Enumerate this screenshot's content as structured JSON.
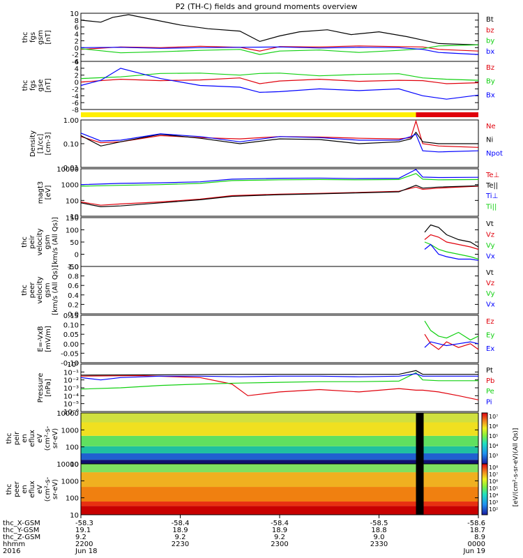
{
  "title": "P2 (TH-C) fields and ground moments overview",
  "colors": {
    "black": "#000000",
    "red": "#e0000b",
    "green": "#10d010",
    "blue": "#0000ff",
    "yellow": "#ffef00",
    "bar_red": "#e0000b"
  },
  "chart_data": [
    {
      "type": "line",
      "panel": "fgs",
      "ylabel": [
        "thc",
        "fgs",
        "gsm",
        "[nT]"
      ],
      "ylim": [
        -4,
        10
      ],
      "yticks": [
        "10",
        "8",
        "6",
        "4",
        "2",
        "0",
        "-2",
        "-4"
      ],
      "series": [
        {
          "name": "Bt",
          "color": "black",
          "x": [
            0,
            0.05,
            0.08,
            0.12,
            0.18,
            0.25,
            0.32,
            0.4,
            0.45,
            0.5,
            0.55,
            0.62,
            0.68,
            0.75,
            0.82,
            0.86,
            0.9,
            1.0
          ],
          "y": [
            8,
            7.4,
            8.8,
            9.6,
            8.2,
            6.6,
            5.5,
            4.8,
            1.8,
            3.4,
            4.6,
            5.2,
            3.8,
            4.6,
            3.2,
            2.2,
            1.2,
            0.8
          ]
        },
        {
          "name": "bz",
          "color": "red",
          "x": [
            0,
            0.1,
            0.2,
            0.3,
            0.4,
            0.45,
            0.5,
            0.6,
            0.7,
            0.8,
            0.86,
            0.9,
            1.0
          ],
          "y": [
            -0.5,
            0.2,
            0,
            0.4,
            0.1,
            -1.0,
            0.3,
            0.2,
            0.5,
            0.3,
            0.2,
            -0.5,
            -1.0
          ]
        },
        {
          "name": "by",
          "color": "green",
          "x": [
            0,
            0.1,
            0.2,
            0.3,
            0.4,
            0.45,
            0.5,
            0.6,
            0.7,
            0.8,
            0.86,
            0.9,
            1.0
          ],
          "y": [
            -0.3,
            -1.5,
            -1.2,
            -0.8,
            -0.5,
            -2.0,
            -1.0,
            -0.7,
            -1.4,
            -0.8,
            -0.3,
            0.5,
            0.8
          ]
        },
        {
          "name": "bx",
          "color": "blue",
          "x": [
            0,
            0.1,
            0.2,
            0.3,
            0.4,
            0.5,
            0.6,
            0.7,
            0.8,
            0.86,
            0.9,
            1.0
          ],
          "y": [
            0,
            0.1,
            -0.2,
            0,
            0.1,
            0.2,
            -0.1,
            0.1,
            0,
            -0.5,
            -1.4,
            -2.0
          ]
        }
      ]
    },
    {
      "type": "line",
      "panel": "fgs_gse",
      "ylabel": [
        "thc",
        "fgs",
        "gse",
        "[nT]"
      ],
      "ylim": [
        -8,
        6
      ],
      "yticks": [
        "6",
        "4",
        "2",
        "0",
        "-2",
        "-4",
        "-6",
        "-8"
      ],
      "series": [
        {
          "name": "Bz",
          "color": "red",
          "x": [
            0,
            0.1,
            0.2,
            0.3,
            0.4,
            0.45,
            0.5,
            0.6,
            0.7,
            0.8,
            0.86,
            0.92,
            1.0
          ],
          "y": [
            0,
            0.8,
            0.4,
            0.6,
            1.2,
            -0.5,
            0.3,
            0.8,
            0.2,
            0.5,
            0.4,
            -0.5,
            -0.2
          ]
        },
        {
          "name": "By",
          "color": "green",
          "x": [
            0,
            0.1,
            0.2,
            0.3,
            0.4,
            0.45,
            0.5,
            0.6,
            0.7,
            0.8,
            0.86,
            0.92,
            1.0
          ],
          "y": [
            1.0,
            1.5,
            2.5,
            2.6,
            2.0,
            2.5,
            2.6,
            1.8,
            2.2,
            2.4,
            1.2,
            0.8,
            0.5
          ]
        },
        {
          "name": "Bx",
          "color": "blue",
          "x": [
            0,
            0.05,
            0.1,
            0.15,
            0.2,
            0.3,
            0.4,
            0.45,
            0.5,
            0.6,
            0.7,
            0.8,
            0.86,
            0.92,
            1.0
          ],
          "y": [
            -1,
            0.5,
            4.0,
            2.5,
            1.0,
            -1.0,
            -1.5,
            -3.0,
            -2.8,
            -2.0,
            -2.5,
            -2.0,
            -4.0,
            -5.0,
            -3.8
          ]
        }
      ]
    },
    {
      "type": "bar_status",
      "panel": "mode_bar",
      "segments": [
        {
          "from": 0,
          "to": 0.843,
          "color": "yellow"
        },
        {
          "from": 0.843,
          "to": 1.0,
          "color": "bar_red"
        }
      ]
    },
    {
      "type": "line",
      "panel": "density",
      "ylabel": [
        "Density",
        "[1/cc]",
        "[cm-3]"
      ],
      "ylim": [
        0.01,
        1.0
      ],
      "scale": "log",
      "yticks": [
        "1.00",
        "0.10",
        "0.01"
      ],
      "series": [
        {
          "name": "Ne",
          "color": "red",
          "x": [
            0,
            0.05,
            0.1,
            0.2,
            0.3,
            0.4,
            0.5,
            0.6,
            0.7,
            0.8,
            0.83,
            0.843,
            0.86,
            0.9,
            1.0
          ],
          "y": [
            0.2,
            0.11,
            0.12,
            0.22,
            0.18,
            0.16,
            0.2,
            0.19,
            0.17,
            0.16,
            0.18,
            0.9,
            0.1,
            0.08,
            0.07
          ]
        },
        {
          "name": "Ni",
          "color": "black",
          "x": [
            0,
            0.05,
            0.1,
            0.2,
            0.3,
            0.4,
            0.5,
            0.6,
            0.7,
            0.8,
            0.83,
            0.843,
            0.86,
            0.9,
            1.0
          ],
          "y": [
            0.22,
            0.08,
            0.12,
            0.25,
            0.17,
            0.1,
            0.16,
            0.15,
            0.1,
            0.12,
            0.16,
            0.3,
            0.12,
            0.1,
            0.1
          ]
        },
        {
          "name": "Npot",
          "color": "blue",
          "x": [
            0,
            0.05,
            0.1,
            0.2,
            0.3,
            0.4,
            0.5,
            0.6,
            0.7,
            0.8,
            0.83,
            0.843,
            0.86,
            0.9,
            1.0
          ],
          "y": [
            0.28,
            0.13,
            0.14,
            0.26,
            0.2,
            0.12,
            0.2,
            0.18,
            0.14,
            0.14,
            0.2,
            0.25,
            0.05,
            0.045,
            0.05
          ]
        }
      ]
    },
    {
      "type": "line",
      "panel": "temperature",
      "ylabel": [
        "magt3",
        "[eV]"
      ],
      "ylim": [
        10,
        10000
      ],
      "scale": "log",
      "yticks": [
        "10000",
        "1000",
        "100",
        "10"
      ],
      "series": [
        {
          "name": "Te⊥",
          "color": "red",
          "x": [
            0,
            0.05,
            0.1,
            0.2,
            0.3,
            0.38,
            0.5,
            0.6,
            0.7,
            0.8,
            0.843,
            0.86,
            0.9,
            1.0
          ],
          "y": [
            80,
            50,
            60,
            80,
            120,
            200,
            250,
            280,
            320,
            380,
            700,
            500,
            600,
            800
          ]
        },
        {
          "name": "Te||",
          "color": "black",
          "x": [
            0,
            0.05,
            0.1,
            0.2,
            0.3,
            0.38,
            0.5,
            0.6,
            0.7,
            0.8,
            0.843,
            0.86,
            0.9,
            1.0
          ],
          "y": [
            70,
            40,
            45,
            70,
            110,
            180,
            230,
            260,
            300,
            350,
            900,
            600,
            700,
            850
          ]
        },
        {
          "name": "Ti⊥",
          "color": "blue",
          "x": [
            0,
            0.1,
            0.2,
            0.3,
            0.38,
            0.5,
            0.6,
            0.7,
            0.8,
            0.843,
            0.86,
            0.9,
            1.0
          ],
          "y": [
            1000,
            1200,
            1300,
            1500,
            2200,
            2500,
            2600,
            2400,
            2500,
            9000,
            3000,
            2800,
            2900
          ]
        },
        {
          "name": "Ti||",
          "color": "green",
          "x": [
            0,
            0.1,
            0.2,
            0.3,
            0.38,
            0.5,
            0.6,
            0.7,
            0.8,
            0.843,
            0.86,
            0.9,
            1.0
          ],
          "y": [
            800,
            900,
            1000,
            1200,
            1800,
            2000,
            2100,
            2000,
            2100,
            5000,
            2200,
            2000,
            2100
          ]
        }
      ]
    },
    {
      "type": "line",
      "panel": "peir_velocity",
      "ylabel": [
        "thc",
        "peir",
        "velocity",
        "gsm",
        "[km/s (All Qs)]"
      ],
      "ylim": [
        -50,
        150
      ],
      "yticks": [
        "150",
        "100",
        "50",
        "0",
        "-50"
      ],
      "series": [
        {
          "name": "Vt",
          "color": "black",
          "x": [
            0.865,
            0.88,
            0.9,
            0.92,
            0.95,
            0.98,
            1.0
          ],
          "y": [
            90,
            120,
            110,
            80,
            60,
            50,
            30
          ]
        },
        {
          "name": "Vz",
          "color": "red",
          "x": [
            0.865,
            0.88,
            0.9,
            0.92,
            0.95,
            0.98,
            1.0
          ],
          "y": [
            60,
            80,
            70,
            50,
            40,
            30,
            20
          ]
        },
        {
          "name": "Vy",
          "color": "green",
          "x": [
            0.865,
            0.88,
            0.9,
            0.92,
            0.95,
            0.98,
            1.0
          ],
          "y": [
            50,
            40,
            20,
            10,
            0,
            -10,
            -20
          ]
        },
        {
          "name": "Vx",
          "color": "blue",
          "x": [
            0.865,
            0.88,
            0.9,
            0.92,
            0.95,
            0.98,
            1.0
          ],
          "y": [
            20,
            40,
            0,
            -10,
            -20,
            -20,
            -25
          ]
        }
      ]
    },
    {
      "type": "line",
      "panel": "peer_velocity",
      "ylabel": [
        "thc",
        "peer",
        "velocity",
        "gsm",
        "[km/s (All Qs)]"
      ],
      "ylim": [
        0,
        1.0
      ],
      "yticks": [
        "1.0",
        "0.8",
        "0.6",
        "0.4",
        "0.2",
        "0.0"
      ],
      "series": [
        {
          "name": "Vt",
          "color": "black",
          "x": [],
          "y": []
        },
        {
          "name": "Vz",
          "color": "red",
          "x": [],
          "y": []
        },
        {
          "name": "Vy",
          "color": "green",
          "x": [],
          "y": []
        },
        {
          "name": "Vx",
          "color": "blue",
          "x": [],
          "y": []
        }
      ]
    },
    {
      "type": "line",
      "panel": "efield",
      "ylabel": [
        "E=-VxB",
        "[mV/m]"
      ],
      "ylim": [
        -0.1,
        0.15
      ],
      "yticks": [
        "0.15",
        "0.10",
        "0.05",
        "0.00",
        "-0.05",
        "-0.10"
      ],
      "series": [
        {
          "name": "Ez",
          "color": "red",
          "x": [
            0.865,
            0.88,
            0.9,
            0.92,
            0.95,
            0.98,
            1.0
          ],
          "y": [
            0.05,
            0.0,
            -0.03,
            0.01,
            -0.02,
            0.0,
            -0.03
          ]
        },
        {
          "name": "Ey",
          "color": "green",
          "x": [
            0.865,
            0.88,
            0.9,
            0.92,
            0.95,
            0.98,
            1.0
          ],
          "y": [
            0.12,
            0.07,
            0.04,
            0.03,
            0.06,
            0.02,
            0.04
          ]
        },
        {
          "name": "Ex",
          "color": "blue",
          "x": [
            0.865,
            0.88,
            0.9,
            0.92,
            0.95,
            0.98,
            1.0
          ],
          "y": [
            -0.02,
            0.01,
            0.0,
            -0.01,
            0.0,
            0.01,
            0.0
          ]
        }
      ]
    },
    {
      "type": "line",
      "panel": "pressure",
      "ylabel": [
        "Pressure",
        "[nPa]"
      ],
      "ylim": [
        1e-06,
        1
      ],
      "scale": "log",
      "yticks": [
        "10⁰",
        "10⁻¹",
        "10⁻²",
        "10⁻³",
        "10⁻⁴",
        "10⁻⁵",
        "10⁻⁶"
      ],
      "series": [
        {
          "name": "Pt",
          "color": "black",
          "x": [
            0,
            0.2,
            0.4,
            0.6,
            0.8,
            0.843,
            0.86,
            1.0
          ],
          "y": [
            0.04,
            0.045,
            0.05,
            0.05,
            0.05,
            0.15,
            0.05,
            0.05
          ]
        },
        {
          "name": "Pb",
          "color": "red",
          "x": [
            0,
            0.15,
            0.3,
            0.38,
            0.42,
            0.5,
            0.6,
            0.7,
            0.8,
            0.843,
            0.86,
            0.9,
            0.95,
            1.0
          ],
          "y": [
            0.03,
            0.035,
            0.02,
            0.003,
            0.0001,
            0.0003,
            0.0006,
            0.0003,
            0.0008,
            0.0005,
            0.0005,
            0.0003,
            0.0001,
            3e-05
          ]
        },
        {
          "name": "Pe",
          "color": "green",
          "x": [
            0,
            0.1,
            0.2,
            0.3,
            0.4,
            0.5,
            0.6,
            0.7,
            0.8,
            0.843,
            0.86,
            0.9,
            1.0
          ],
          "y": [
            0.0007,
            0.001,
            0.002,
            0.003,
            0.004,
            0.005,
            0.006,
            0.006,
            0.007,
            0.08,
            0.01,
            0.008,
            0.008
          ]
        },
        {
          "name": "Pi",
          "color": "blue",
          "x": [
            0,
            0.05,
            0.1,
            0.2,
            0.3,
            0.4,
            0.5,
            0.6,
            0.7,
            0.8,
            0.843,
            0.86,
            1.0
          ],
          "y": [
            0.02,
            0.01,
            0.02,
            0.03,
            0.03,
            0.025,
            0.03,
            0.03,
            0.025,
            0.03,
            0.06,
            0.03,
            0.03
          ]
        }
      ]
    },
    {
      "type": "heatmap",
      "panel": "peir_spectrogram",
      "ylabel": [
        "thc",
        "peir",
        "en",
        "eflux",
        "eV",
        "(cm²-s-",
        "sr-eV)"
      ],
      "ylim": [
        5,
        30000
      ],
      "scale": "log",
      "yticks": [
        "10000",
        "1000",
        "100",
        "10"
      ],
      "bands": [
        {
          "from": 5,
          "to": 10,
          "color": "#101070"
        },
        {
          "from": 10,
          "to": 30,
          "color": "#2060d0"
        },
        {
          "from": 30,
          "to": 100,
          "color": "#20c0a0"
        },
        {
          "from": 100,
          "to": 600,
          "color": "#60e060"
        },
        {
          "from": 600,
          "to": 6000,
          "color": "#f0e020"
        },
        {
          "from": 6000,
          "to": 30000,
          "color": "#d0e040"
        }
      ]
    },
    {
      "type": "heatmap",
      "panel": "peer_spectrogram",
      "ylabel": [
        "thc",
        "peer",
        "en",
        "eflux",
        "eV",
        "(cm²-s-",
        "sr-eV)"
      ],
      "ylim": [
        5,
        15000
      ],
      "scale": "log",
      "yticks": [
        "10000",
        "1000",
        "100",
        "10"
      ],
      "bands": [
        {
          "from": 5,
          "to": 20,
          "color": "#c80000"
        },
        {
          "from": 20,
          "to": 40,
          "color": "#e83010"
        },
        {
          "from": 40,
          "to": 400,
          "color": "#f08010"
        },
        {
          "from": 400,
          "to": 4000,
          "color": "#f0b020"
        },
        {
          "from": 4000,
          "to": 15000,
          "color": "#80e060"
        }
      ]
    }
  ],
  "colorbar": {
    "label": "[eV/(cm²-s-sr-eV)(All Qs)]",
    "ticks_peir": [
      "10⁷",
      "10⁶",
      "10⁵",
      "10⁴",
      "10³"
    ],
    "ticks_peer": [
      "10⁸",
      "10⁷",
      "10⁶",
      "10⁵",
      "10⁴",
      "10³",
      "10²"
    ]
  },
  "xaxis": {
    "row_labels": [
      "thc_X-GSM",
      "thc_Y-GSM",
      "thc_Z-GSM",
      "hhmm",
      "2016"
    ],
    "columns": [
      [
        "-58.3",
        "19.1",
        "9.2",
        "2200",
        "Jun 18"
      ],
      [
        "-58.4",
        "18.9",
        "9.2",
        "2230",
        ""
      ],
      [
        "-58.4",
        "18.9",
        "9.2",
        "2300",
        ""
      ],
      [
        "-58.5",
        "18.8",
        "9.0",
        "2330",
        ""
      ],
      [
        "-58.6",
        "18.7",
        "8.9",
        "0000",
        "Jun 19"
      ]
    ]
  }
}
